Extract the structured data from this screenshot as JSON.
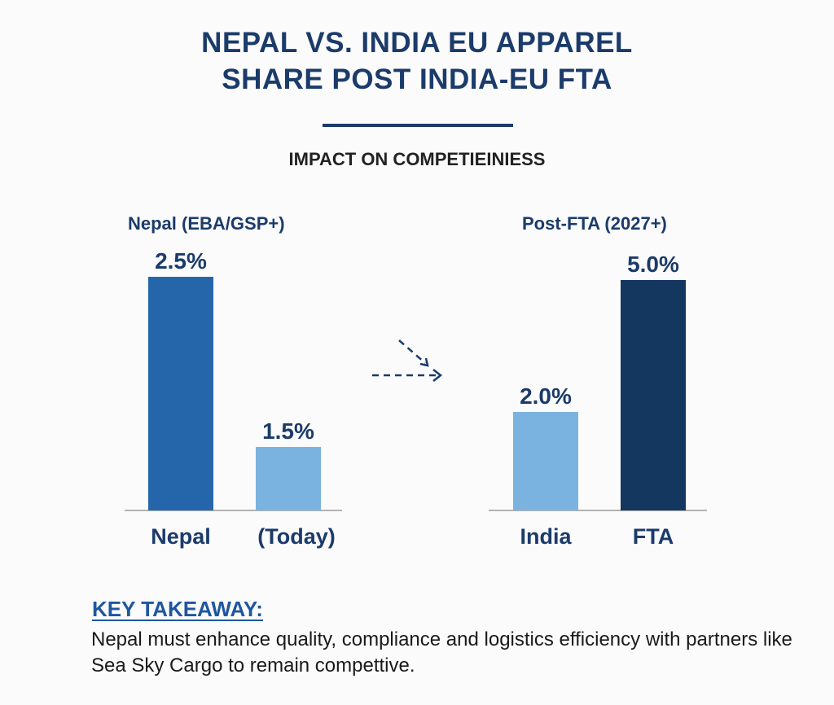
{
  "title_line1": "NEPAL VS. INDIA EU APPAREL",
  "title_line2": "SHARE POST INDIA-EU FTA",
  "subtitle": "IMPACT ON COMPETIEINIESS",
  "chart_data": {
    "type": "bar",
    "title": "NEPAL VS. INDIA EU APPAREL SHARE POST INDIA-EU FTA",
    "subtitle": "IMPACT ON COMPETIEINIESS",
    "groups": [
      {
        "label": "Nepal (EBA/GSP+)",
        "categories": [
          "Nepal",
          "(Today)"
        ],
        "values": [
          2.5,
          1.5
        ],
        "value_labels": [
          "2.5%",
          "1.5%"
        ],
        "colors": [
          "#2566ab",
          "#7ab3e0"
        ]
      },
      {
        "label": "Post-FTA (2027+)",
        "categories": [
          "India",
          "FTA"
        ],
        "values": [
          2.0,
          5.0
        ],
        "value_labels": [
          "2.0%",
          "5.0%"
        ],
        "colors": [
          "#7ab3e0",
          "#14375f"
        ]
      }
    ],
    "unit": "%",
    "grid": false,
    "legend": "none"
  },
  "takeaway": {
    "heading": "KEY TAKEAWAY:",
    "text": "Nepal must enhance quality, compliance and logistics efficiency with partners like Sea Sky Cargo to remain compettive."
  }
}
